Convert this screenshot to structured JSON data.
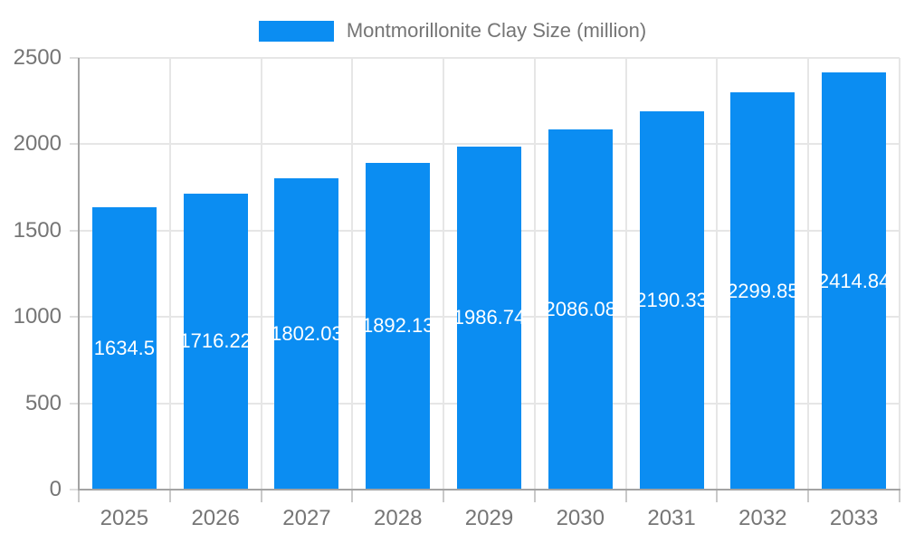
{
  "chart_data": {
    "type": "bar",
    "title": "Montmorillonite Clay Size (million)",
    "legend": {
      "label": "Montmorillonite Clay Size (million)",
      "position": "top-center"
    },
    "categories": [
      "2025",
      "2026",
      "2027",
      "2028",
      "2029",
      "2030",
      "2031",
      "2032",
      "2033"
    ],
    "series": [
      {
        "name": "Montmorillonite Clay Size (million)",
        "values": [
          1634.5,
          1716.22,
          1802.03,
          1892.13,
          1986.74,
          2086.08,
          2190.33,
          2299.85,
          2414.84
        ],
        "value_labels": [
          "1634.5",
          "1716.22",
          "1802.03",
          "1892.13",
          "1986.74",
          "2086.08",
          "2190.33",
          "2299.85",
          "2414.84"
        ]
      }
    ],
    "xlabel": "",
    "ylabel": "",
    "ylim": [
      0,
      2500
    ],
    "yticks": [
      0,
      500,
      1000,
      1500,
      2000,
      2500
    ],
    "grid": true,
    "colors": {
      "bar": "#0b8df2",
      "axis_line": "#a3a3a3",
      "gridline": "#e6e6e6",
      "tick": "#c9c9c9",
      "tick_text": "#757575",
      "value_label_text": "#ffffff",
      "background": "#ffffff"
    }
  }
}
